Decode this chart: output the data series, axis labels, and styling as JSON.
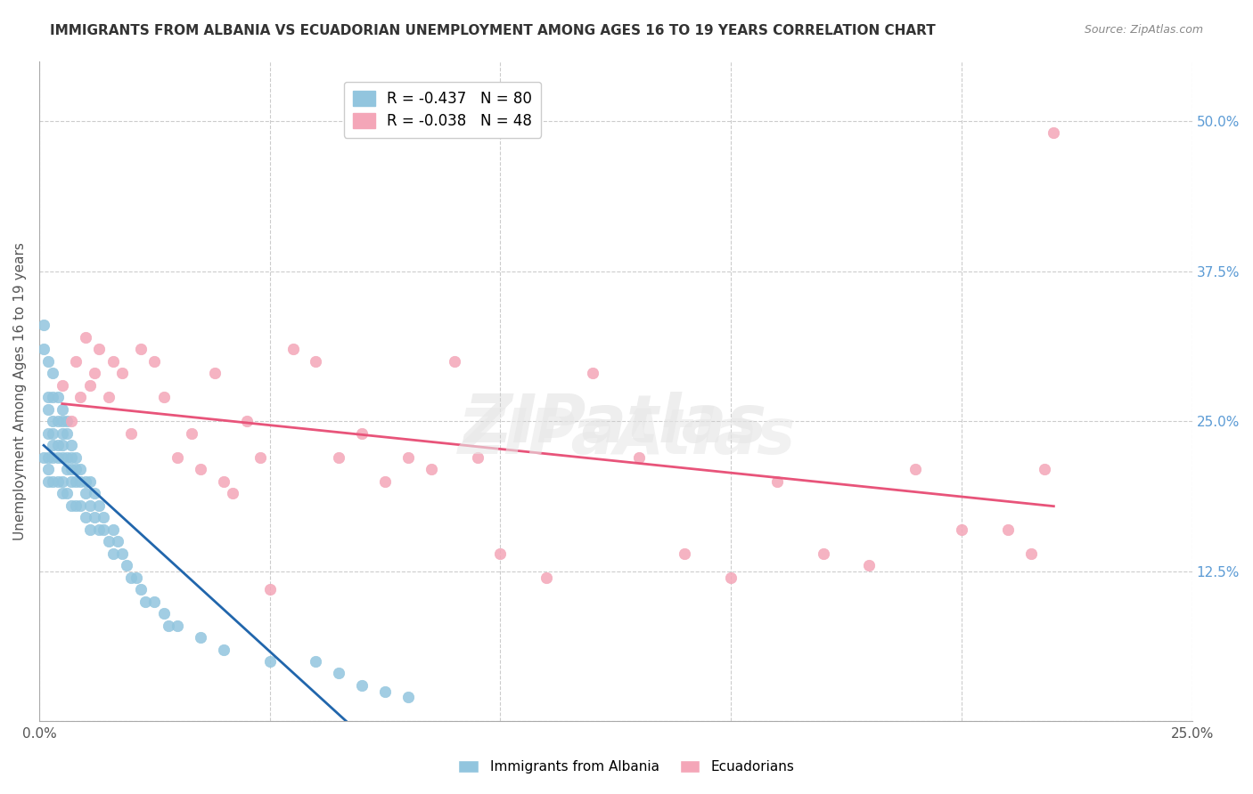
{
  "title": "IMMIGRANTS FROM ALBANIA VS ECUADORIAN UNEMPLOYMENT AMONG AGES 16 TO 19 YEARS CORRELATION CHART",
  "source": "Source: ZipAtlas.com",
  "ylabel": "Unemployment Among Ages 16 to 19 years",
  "xlabel": "",
  "xlim": [
    0.0,
    0.25
  ],
  "ylim": [
    0.0,
    0.55
  ],
  "x_ticks": [
    0.0,
    0.05,
    0.1,
    0.15,
    0.2,
    0.25
  ],
  "x_tick_labels": [
    "0.0%",
    "",
    "",
    "",
    "",
    "25.0%"
  ],
  "y_tick_labels_right": [
    "",
    "12.5%",
    "25.0%",
    "37.5%",
    "50.0%"
  ],
  "y_ticks_right": [
    0.0,
    0.125,
    0.25,
    0.375,
    0.5
  ],
  "albania_color": "#92c5de",
  "ecuador_color": "#f4a6b8",
  "albania_line_color": "#2166ac",
  "ecuador_line_color": "#e8547a",
  "trendline_albania_dashed_color": "#aaaaaa",
  "R_albania": -0.437,
  "N_albania": 80,
  "R_ecuador": -0.038,
  "N_ecuador": 48,
  "albania_x": [
    0.001,
    0.001,
    0.001,
    0.002,
    0.002,
    0.002,
    0.002,
    0.002,
    0.002,
    0.002,
    0.003,
    0.003,
    0.003,
    0.003,
    0.003,
    0.003,
    0.003,
    0.004,
    0.004,
    0.004,
    0.004,
    0.004,
    0.005,
    0.005,
    0.005,
    0.005,
    0.005,
    0.005,
    0.005,
    0.006,
    0.006,
    0.006,
    0.006,
    0.006,
    0.007,
    0.007,
    0.007,
    0.007,
    0.007,
    0.008,
    0.008,
    0.008,
    0.008,
    0.009,
    0.009,
    0.009,
    0.01,
    0.01,
    0.01,
    0.011,
    0.011,
    0.011,
    0.012,
    0.012,
    0.013,
    0.013,
    0.014,
    0.014,
    0.015,
    0.016,
    0.016,
    0.017,
    0.018,
    0.019,
    0.02,
    0.021,
    0.022,
    0.023,
    0.025,
    0.027,
    0.028,
    0.03,
    0.035,
    0.04,
    0.05,
    0.06,
    0.065,
    0.07,
    0.075,
    0.08
  ],
  "albania_y": [
    0.33,
    0.31,
    0.22,
    0.3,
    0.27,
    0.26,
    0.24,
    0.22,
    0.21,
    0.2,
    0.29,
    0.27,
    0.25,
    0.24,
    0.23,
    0.22,
    0.2,
    0.27,
    0.25,
    0.23,
    0.22,
    0.2,
    0.26,
    0.25,
    0.24,
    0.23,
    0.22,
    0.2,
    0.19,
    0.25,
    0.24,
    0.22,
    0.21,
    0.19,
    0.23,
    0.22,
    0.21,
    0.2,
    0.18,
    0.22,
    0.21,
    0.2,
    0.18,
    0.21,
    0.2,
    0.18,
    0.2,
    0.19,
    0.17,
    0.2,
    0.18,
    0.16,
    0.19,
    0.17,
    0.18,
    0.16,
    0.17,
    0.16,
    0.15,
    0.16,
    0.14,
    0.15,
    0.14,
    0.13,
    0.12,
    0.12,
    0.11,
    0.1,
    0.1,
    0.09,
    0.08,
    0.08,
    0.07,
    0.06,
    0.05,
    0.05,
    0.04,
    0.03,
    0.025,
    0.02
  ],
  "ecuador_x": [
    0.005,
    0.007,
    0.008,
    0.009,
    0.01,
    0.011,
    0.012,
    0.013,
    0.015,
    0.016,
    0.018,
    0.02,
    0.022,
    0.025,
    0.027,
    0.03,
    0.033,
    0.035,
    0.038,
    0.04,
    0.042,
    0.045,
    0.048,
    0.05,
    0.055,
    0.06,
    0.065,
    0.07,
    0.075,
    0.08,
    0.085,
    0.09,
    0.095,
    0.1,
    0.11,
    0.12,
    0.13,
    0.14,
    0.15,
    0.16,
    0.17,
    0.18,
    0.19,
    0.2,
    0.21,
    0.215,
    0.218,
    0.22
  ],
  "ecuador_y": [
    0.28,
    0.25,
    0.3,
    0.27,
    0.32,
    0.28,
    0.29,
    0.31,
    0.27,
    0.3,
    0.29,
    0.24,
    0.31,
    0.3,
    0.27,
    0.22,
    0.24,
    0.21,
    0.29,
    0.2,
    0.19,
    0.25,
    0.22,
    0.11,
    0.31,
    0.3,
    0.22,
    0.24,
    0.2,
    0.22,
    0.21,
    0.3,
    0.22,
    0.14,
    0.12,
    0.29,
    0.22,
    0.14,
    0.12,
    0.2,
    0.14,
    0.13,
    0.21,
    0.16,
    0.16,
    0.14,
    0.21,
    0.49
  ]
}
